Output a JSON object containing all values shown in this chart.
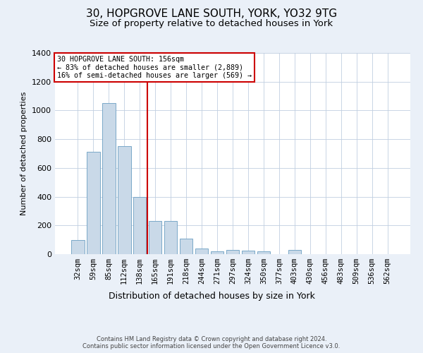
{
  "title1": "30, HOPGROVE LANE SOUTH, YORK, YO32 9TG",
  "title2": "Size of property relative to detached houses in York",
  "xlabel": "Distribution of detached houses by size in York",
  "ylabel": "Number of detached properties",
  "categories": [
    "32sqm",
    "59sqm",
    "85sqm",
    "112sqm",
    "138sqm",
    "165sqm",
    "191sqm",
    "218sqm",
    "244sqm",
    "271sqm",
    "297sqm",
    "324sqm",
    "350sqm",
    "377sqm",
    "403sqm",
    "430sqm",
    "456sqm",
    "483sqm",
    "509sqm",
    "536sqm",
    "562sqm"
  ],
  "values": [
    100,
    710,
    1050,
    750,
    400,
    230,
    230,
    110,
    40,
    20,
    30,
    25,
    20,
    0,
    30,
    0,
    0,
    0,
    0,
    0,
    0
  ],
  "bar_color": "#c9d9e8",
  "bar_edge_color": "#7aa8c8",
  "vline_x": 4.5,
  "vline_color": "#cc0000",
  "annotation_text": "30 HOPGROVE LANE SOUTH: 156sqm\n← 83% of detached houses are smaller (2,889)\n16% of semi-detached houses are larger (569) →",
  "annotation_box_color": "#ffffff",
  "annotation_box_edge_color": "#cc0000",
  "ylim": [
    0,
    1400
  ],
  "yticks": [
    0,
    200,
    400,
    600,
    800,
    1000,
    1200,
    1400
  ],
  "background_color": "#eaf0f8",
  "plot_background": "#ffffff",
  "footer_text": "Contains HM Land Registry data © Crown copyright and database right 2024.\nContains public sector information licensed under the Open Government Licence v3.0.",
  "title1_fontsize": 11,
  "title2_fontsize": 9.5,
  "xlabel_fontsize": 9,
  "ylabel_fontsize": 8,
  "grid_color": "#c0cfe0",
  "tick_fontsize": 7.5
}
